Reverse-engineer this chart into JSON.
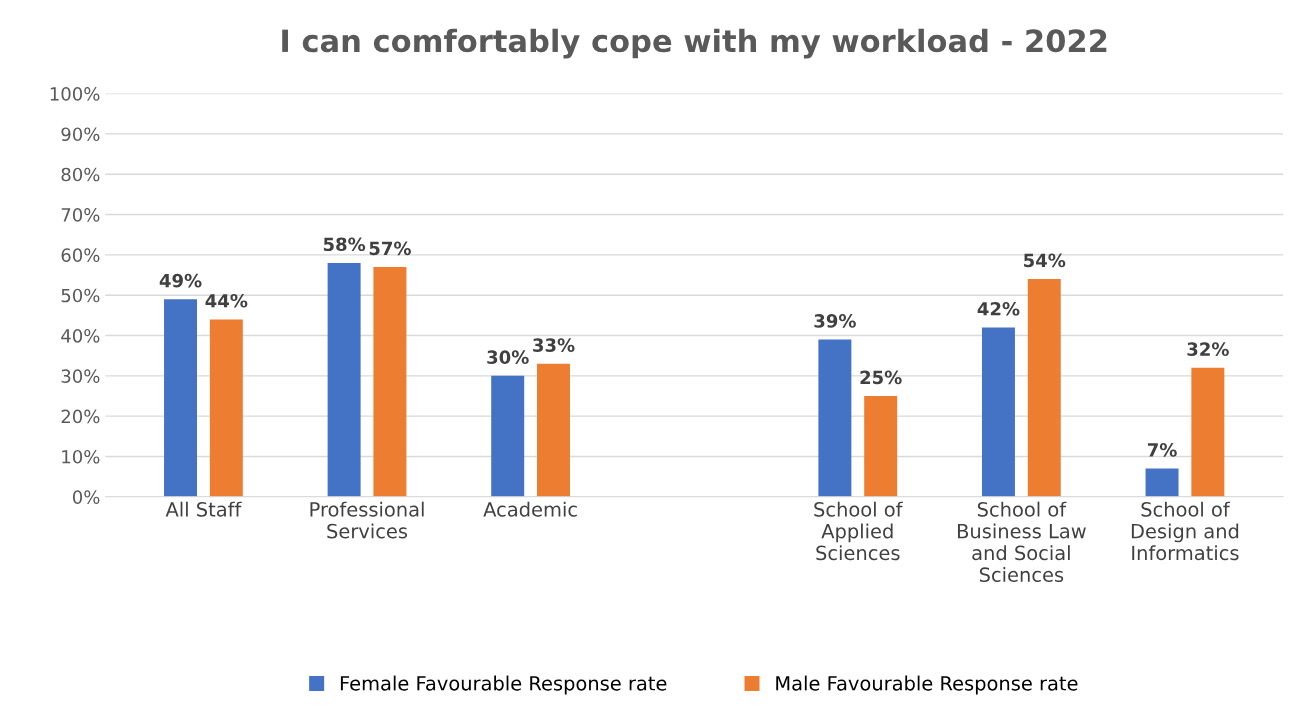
{
  "chart_data": {
    "type": "bar",
    "title": "I can comfortably cope with my workload - 2022",
    "categories": [
      "All Staff",
      "Professional\nServices",
      "Academic",
      null,
      "School of\nApplied\nSciences",
      "School of\nBusiness Law\nand Social\nSciences",
      "School of\nDesign and\nInformatics"
    ],
    "series": [
      {
        "name": "Female Favourable Response rate",
        "color": "#4472c4",
        "values": [
          49,
          58,
          30,
          null,
          39,
          42,
          7
        ],
        "value_labels": [
          "49%",
          "58%",
          "30%",
          null,
          "39%",
          "42%",
          "7%"
        ]
      },
      {
        "name": "Male Favourable Response rate",
        "color": "#ed7d31",
        "values": [
          44,
          57,
          33,
          null,
          25,
          54,
          32
        ],
        "value_labels": [
          "44%",
          "57%",
          "33%",
          null,
          "25%",
          "54%",
          "32%"
        ]
      }
    ],
    "ylim": [
      0,
      100
    ],
    "yticks": [
      {
        "value": 0,
        "label": "0%"
      },
      {
        "value": 10,
        "label": "10%"
      },
      {
        "value": 20,
        "label": "20%"
      },
      {
        "value": 30,
        "label": "30%"
      },
      {
        "value": 40,
        "label": "40%"
      },
      {
        "value": 50,
        "label": "50%"
      },
      {
        "value": 60,
        "label": "60%"
      },
      {
        "value": 70,
        "label": "70%"
      },
      {
        "value": 80,
        "label": "80%"
      },
      {
        "value": 90,
        "label": "90%"
      },
      {
        "value": 100,
        "label": "100%"
      }
    ],
    "grid": "y",
    "legend": "bottom"
  }
}
